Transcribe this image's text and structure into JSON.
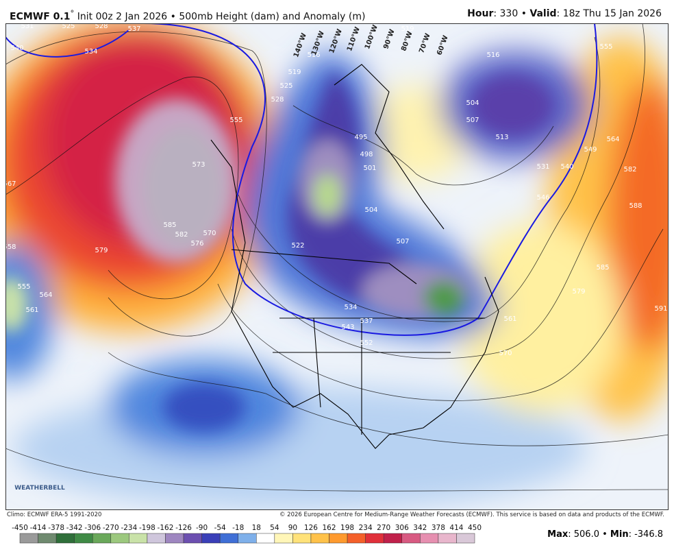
{
  "header": {
    "model": "ECMWF 0.1",
    "degree": "°",
    "title": "Init 00z 2 Jan 2026 • 500mb Height (dam) and Anomaly (m)",
    "hour_label": "Hour",
    "hour": ": 330 • ",
    "valid_label": "Valid",
    "valid": ": 18z Thu 15 Jan 2026"
  },
  "map": {
    "longitude_labels": [
      "140°W",
      "130°W",
      "120°W",
      "110°W",
      "100°W",
      "90°W",
      "80°W",
      "70°W",
      "60°W"
    ],
    "contour_labels": [
      "531",
      "525",
      "528",
      "537",
      "540",
      "534",
      "567",
      "573",
      "585",
      "582",
      "579",
      "576",
      "570",
      "558",
      "555",
      "564",
      "561",
      "555",
      "528",
      "525",
      "519",
      "516",
      "495",
      "498",
      "501",
      "504",
      "507",
      "522",
      "534",
      "537",
      "543",
      "552",
      "561",
      "570",
      "579",
      "585",
      "591",
      "588",
      "582",
      "564",
      "555",
      "549",
      "540",
      "546",
      "531",
      "513",
      "507",
      "504",
      "516",
      "519"
    ],
    "watermark": "WEATHERBELL"
  },
  "footer": {
    "climo": "Climo: ECMWF ERA-5 1991-2020",
    "copyright": "© 2026 European Centre for Medium-Range Weather Forecasts (ECMWF). This service is based on data and products of the ECMWF.",
    "max_label": "Max",
    "max": ": 506.0 • ",
    "min_label": "Min",
    "min": ": -346.8"
  },
  "colorbar": {
    "ticks": [
      -450,
      -414,
      -378,
      -342,
      -306,
      -270,
      -234,
      -198,
      -162,
      -126,
      -90,
      -54,
      -18,
      18,
      54,
      90,
      126,
      162,
      198,
      234,
      270,
      306,
      342,
      378,
      414,
      450
    ],
    "colors": [
      "#9a9a9a",
      "#6f8a6f",
      "#2f6f3a",
      "#3f8a45",
      "#6aa85a",
      "#9cc87e",
      "#c9e2a8",
      "#cfc6dc",
      "#9e86c0",
      "#6c4fb0",
      "#3a3fb8",
      "#3f6fd6",
      "#7fb0ea",
      "#ffffff",
      "#fff6b8",
      "#ffe27a",
      "#ffc24a",
      "#ff9a2e",
      "#f4602a",
      "#e0303a",
      "#c0204a",
      "#d85a82",
      "#e68fb0",
      "#e8b6cc",
      "#d9c8d8"
    ]
  }
}
